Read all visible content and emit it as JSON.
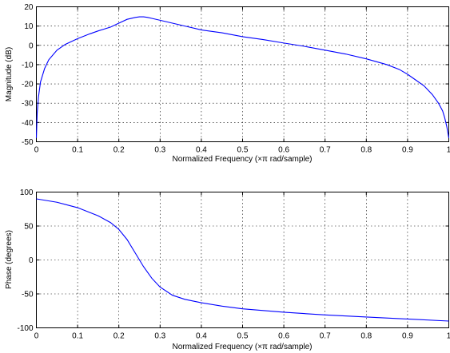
{
  "chart_data": [
    {
      "type": "line",
      "title": "",
      "xlabel": "Normalized Frequency  (×π rad/sample)",
      "ylabel": "Magnitude (dB)",
      "xlim": [
        0,
        1
      ],
      "ylim": [
        -50,
        20
      ],
      "xticks": [
        "0",
        "0.1",
        "0.2",
        "0.3",
        "0.4",
        "0.5",
        "0.6",
        "0.7",
        "0.8",
        "0.9",
        "1"
      ],
      "yticks": [
        "20",
        "10",
        "0",
        "-10",
        "-20",
        "-30",
        "-40",
        "-50"
      ],
      "grid": true,
      "line_color": "#0000ff",
      "series": [
        {
          "x": [
            0,
            0.002,
            0.005,
            0.01,
            0.02,
            0.03,
            0.05,
            0.07,
            0.1,
            0.13,
            0.15,
            0.18,
            0.2,
            0.22,
            0.24,
            0.25,
            0.26,
            0.27,
            0.28,
            0.3,
            0.33,
            0.36,
            0.4,
            0.45,
            0.5,
            0.55,
            0.6,
            0.65,
            0.7,
            0.75,
            0.8,
            0.85,
            0.88,
            0.9,
            0.92,
            0.94,
            0.96,
            0.975,
            0.985,
            0.99,
            0.995,
            1
          ],
          "y": [
            -48,
            -35,
            -27,
            -19,
            -12,
            -7.5,
            -2.5,
            0.5,
            3.5,
            6,
            7.5,
            9.5,
            11.5,
            13.5,
            14.5,
            14.8,
            14.8,
            14.5,
            14,
            13,
            11.5,
            10,
            8,
            6.5,
            4.5,
            3,
            1.2,
            -0.5,
            -2.5,
            -4.5,
            -7,
            -10,
            -12.5,
            -15,
            -18,
            -21,
            -25.5,
            -30,
            -34,
            -37.5,
            -42,
            -48
          ]
        }
      ]
    },
    {
      "type": "line",
      "title": "",
      "xlabel": "Normalized Frequency  (×π rad/sample)",
      "ylabel": "Phase (degrees)",
      "xlim": [
        0,
        1
      ],
      "ylim": [
        -100,
        100
      ],
      "xticks": [
        "0",
        "0.1",
        "0.2",
        "0.3",
        "0.4",
        "0.5",
        "0.6",
        "0.7",
        "0.8",
        "0.9",
        "1"
      ],
      "yticks": [
        "100",
        "50",
        "0",
        "-50",
        "-100"
      ],
      "grid": true,
      "line_color": "#0000ff",
      "series": [
        {
          "x": [
            0,
            0.05,
            0.1,
            0.15,
            0.18,
            0.2,
            0.22,
            0.24,
            0.26,
            0.28,
            0.3,
            0.33,
            0.36,
            0.4,
            0.45,
            0.5,
            0.6,
            0.7,
            0.8,
            0.9,
            1
          ],
          "y": [
            90,
            85,
            77,
            65,
            55,
            45,
            30,
            10,
            -10,
            -27,
            -40,
            -52,
            -58,
            -63,
            -68,
            -72,
            -77,
            -81,
            -84,
            -87,
            -90
          ]
        }
      ]
    }
  ]
}
